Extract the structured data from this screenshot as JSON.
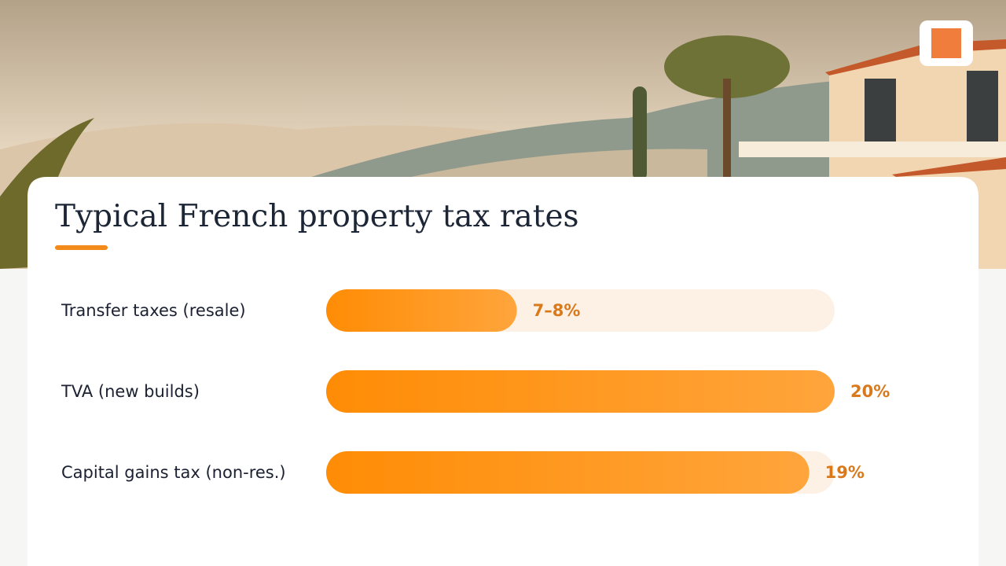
{
  "chart_data": {
    "type": "bar",
    "orientation": "horizontal",
    "title": "Typical French property tax rates",
    "categories": [
      "Transfer taxes (resale)",
      "TVA (new builds)",
      "Capital gains tax (non-res.)"
    ],
    "values": [
      7.5,
      20,
      19
    ],
    "value_labels": [
      "7–8%",
      "20%",
      "19%"
    ],
    "color": "#ff8f0f",
    "xlim": [
      0,
      20
    ]
  }
}
